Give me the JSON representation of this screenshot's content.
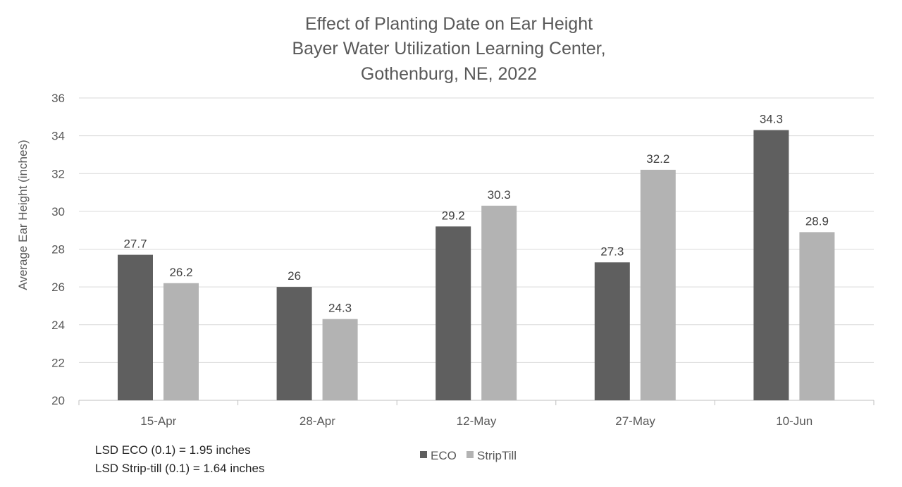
{
  "chart_data": {
    "type": "bar",
    "title": [
      "Effect of Planting Date on Ear Height",
      "Bayer Water Utilization Learning Center,",
      "Gothenburg, NE, 2022"
    ],
    "xlabel": "",
    "ylabel": "Average Ear Height (inches)",
    "ylim": [
      20,
      36
    ],
    "yticks": [
      20,
      22,
      24,
      26,
      28,
      30,
      32,
      34,
      36
    ],
    "grid": true,
    "legend_placement": "bottom",
    "categories": [
      "15-Apr",
      "28-Apr",
      "12-May",
      "27-May",
      "10-Jun"
    ],
    "series": [
      {
        "name": "ECO",
        "color": "#5f5f5f",
        "values": [
          27.7,
          26,
          29.2,
          27.3,
          34.3
        ]
      },
      {
        "name": "StripTill",
        "color": "#b3b3b3",
        "values": [
          26.2,
          24.3,
          30.3,
          32.2,
          28.9
        ]
      }
    ],
    "annotations": [
      "LSD ECO (0.1) = 1.95 inches",
      "LSD Strip-till (0.1) = 1.64 inches"
    ]
  }
}
